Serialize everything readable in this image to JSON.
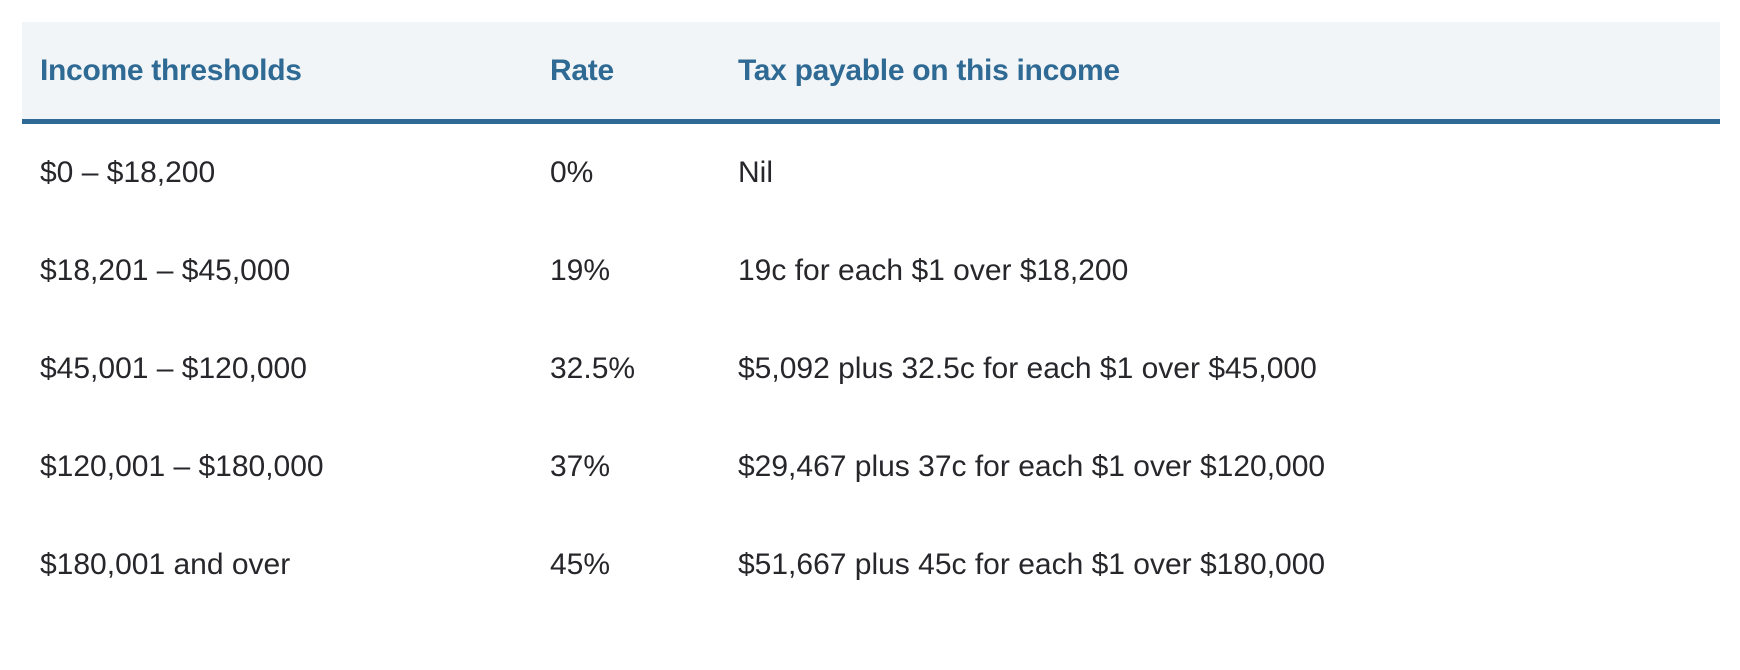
{
  "table": {
    "headers": [
      "Income thresholds",
      "Rate",
      "Tax payable on this income"
    ],
    "rows": [
      {
        "income": "$0 – $18,200",
        "rate": "0%",
        "tax": "Nil"
      },
      {
        "income": "$18,201 – $45,000",
        "rate": "19%",
        "tax": "19c for each $1 over $18,200"
      },
      {
        "income": "$45,001 – $120,000",
        "rate": "32.5%",
        "tax": "$5,092 plus 32.5c for each $1 over $45,000"
      },
      {
        "income": "$120,001 – $180,000",
        "rate": "37%",
        "tax": "$29,467 plus 37c for each $1 over $120,000"
      },
      {
        "income": "$180,001 and over",
        "rate": "45%",
        "tax": "$51,667 plus 45c for each $1 over $180,000"
      }
    ]
  },
  "colors": {
    "header_text": "#2e6a93",
    "header_bg": "#f2f5f8",
    "header_rule": "#2e6a93",
    "body_text": "#26262b"
  }
}
